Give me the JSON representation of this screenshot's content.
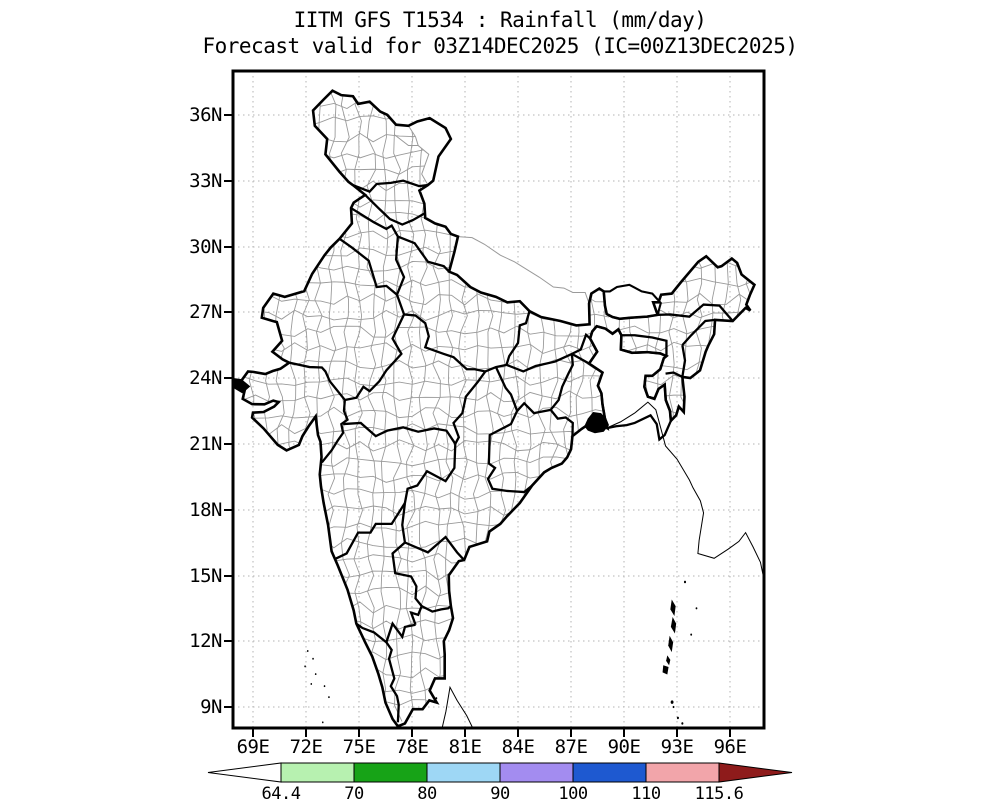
{
  "title": {
    "line1": "IITM GFS T1534 : Rainfall (mm/day)",
    "line2": "Forecast valid for 03Z14DEC2025 (IC=00Z13DEC2025)"
  },
  "map_axes": {
    "lat_ticks": [
      "36N",
      "33N",
      "30N",
      "27N",
      "24N",
      "21N",
      "18N",
      "15N",
      "12N",
      "9N"
    ],
    "lon_ticks": [
      "69E",
      "72E",
      "75E",
      "78E",
      "81E",
      "84E",
      "87E",
      "90E",
      "93E",
      "96E"
    ]
  },
  "colorbar": {
    "labels": [
      "64.4",
      "70",
      "80",
      "90",
      "100",
      "110",
      "115.6"
    ],
    "segment_colors": [
      "#b7f1b0",
      "#17a317",
      "#9ed7f5",
      "#a38cf0",
      "#1e59d0",
      "#f2a5aa"
    ],
    "under_arrow_color": "#ffffff",
    "over_arrow_color": "#8e1b1b"
  },
  "chart_data": {
    "type": "heatmap",
    "title": "IITM GFS T1534 : Rainfall (mm/day)",
    "subtitle": "Forecast valid for 03Z14DEC2025 (IC=00Z13DEC2025)",
    "x_ticks": [
      "69E",
      "72E",
      "75E",
      "78E",
      "81E",
      "84E",
      "87E",
      "90E",
      "93E",
      "96E"
    ],
    "y_ticks": [
      "36N",
      "33N",
      "30N",
      "27N",
      "24N",
      "21N",
      "18N",
      "15N",
      "12N",
      "9N"
    ],
    "lon_range": [
      67.9,
      97.9
    ],
    "lat_range": [
      8,
      38
    ],
    "colorbar_levels": [
      64.4,
      70,
      80,
      90,
      100,
      110,
      115.6
    ],
    "colorbar_colors": [
      "#b7f1b0",
      "#17a317",
      "#9ed7f5",
      "#a38cf0",
      "#1e59d0",
      "#f2a5aa"
    ],
    "shaded_cells": [],
    "legend_position": "bottom",
    "grid": "dotted 3-degree graticule"
  }
}
